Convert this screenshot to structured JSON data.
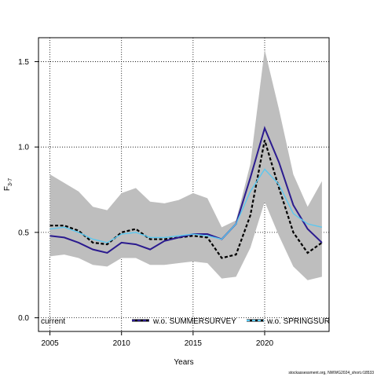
{
  "chart_data": {
    "type": "line",
    "xlabel": "Years",
    "ylabel_main": "F",
    "ylabel_sub": "3-7",
    "xlim": [
      2004.2,
      2024.5
    ],
    "ylim": [
      -0.08,
      1.64
    ],
    "x_ticks": [
      2005,
      2010,
      2015,
      2020
    ],
    "y_ticks": [
      0.0,
      0.5,
      1.0,
      1.5
    ],
    "y_tick_labels": [
      "0.0",
      "0.5",
      "1.0",
      "1.5"
    ],
    "grid": "dotted",
    "legend_position": "bottom",
    "x": [
      2005,
      2006,
      2007,
      2008,
      2009,
      2010,
      2011,
      2012,
      2013,
      2014,
      2015,
      2016,
      2017,
      2018,
      2019,
      2020,
      2021,
      2022,
      2023,
      2024
    ],
    "band": {
      "upper": [
        0.84,
        0.79,
        0.74,
        0.65,
        0.63,
        0.73,
        0.76,
        0.68,
        0.67,
        0.69,
        0.73,
        0.7,
        0.53,
        0.57,
        0.9,
        1.57,
        1.22,
        0.84,
        0.65,
        0.8
      ],
      "lower": [
        0.36,
        0.37,
        0.35,
        0.31,
        0.3,
        0.35,
        0.35,
        0.31,
        0.31,
        0.32,
        0.33,
        0.32,
        0.23,
        0.24,
        0.41,
        0.68,
        0.48,
        0.3,
        0.22,
        0.24
      ]
    },
    "series": [
      {
        "name": "current",
        "color": "#000000",
        "style": "dashed-on-gray",
        "values": [
          0.54,
          0.54,
          0.51,
          0.44,
          0.43,
          0.5,
          0.52,
          0.46,
          0.46,
          0.47,
          0.48,
          0.47,
          0.35,
          0.37,
          0.6,
          1.04,
          0.76,
          0.5,
          0.38,
          0.44
        ]
      },
      {
        "name": "w.o. SUMMERSURVEY",
        "color": "#2b1b8f",
        "style": "solid",
        "values": [
          0.48,
          0.47,
          0.44,
          0.4,
          0.38,
          0.44,
          0.43,
          0.4,
          0.45,
          0.47,
          0.49,
          0.49,
          0.46,
          0.55,
          0.82,
          1.11,
          0.91,
          0.66,
          0.52,
          0.44
        ]
      },
      {
        "name": "w.o. SPRINGSURVEY",
        "color": "#5bc8f0",
        "style": "solid",
        "values": [
          0.52,
          0.53,
          0.5,
          0.46,
          0.44,
          0.49,
          0.5,
          0.47,
          0.47,
          0.48,
          0.49,
          0.48,
          0.46,
          0.55,
          0.74,
          0.87,
          0.78,
          0.61,
          0.55,
          0.53
        ]
      }
    ],
    "legend": {
      "current": "current",
      "summer": "w.o. SUMMERSURVEY",
      "spring": "w.o. SPRINGSURVEY"
    }
  },
  "footer": "stockassessment.org, NWWG2024_short.r18533"
}
